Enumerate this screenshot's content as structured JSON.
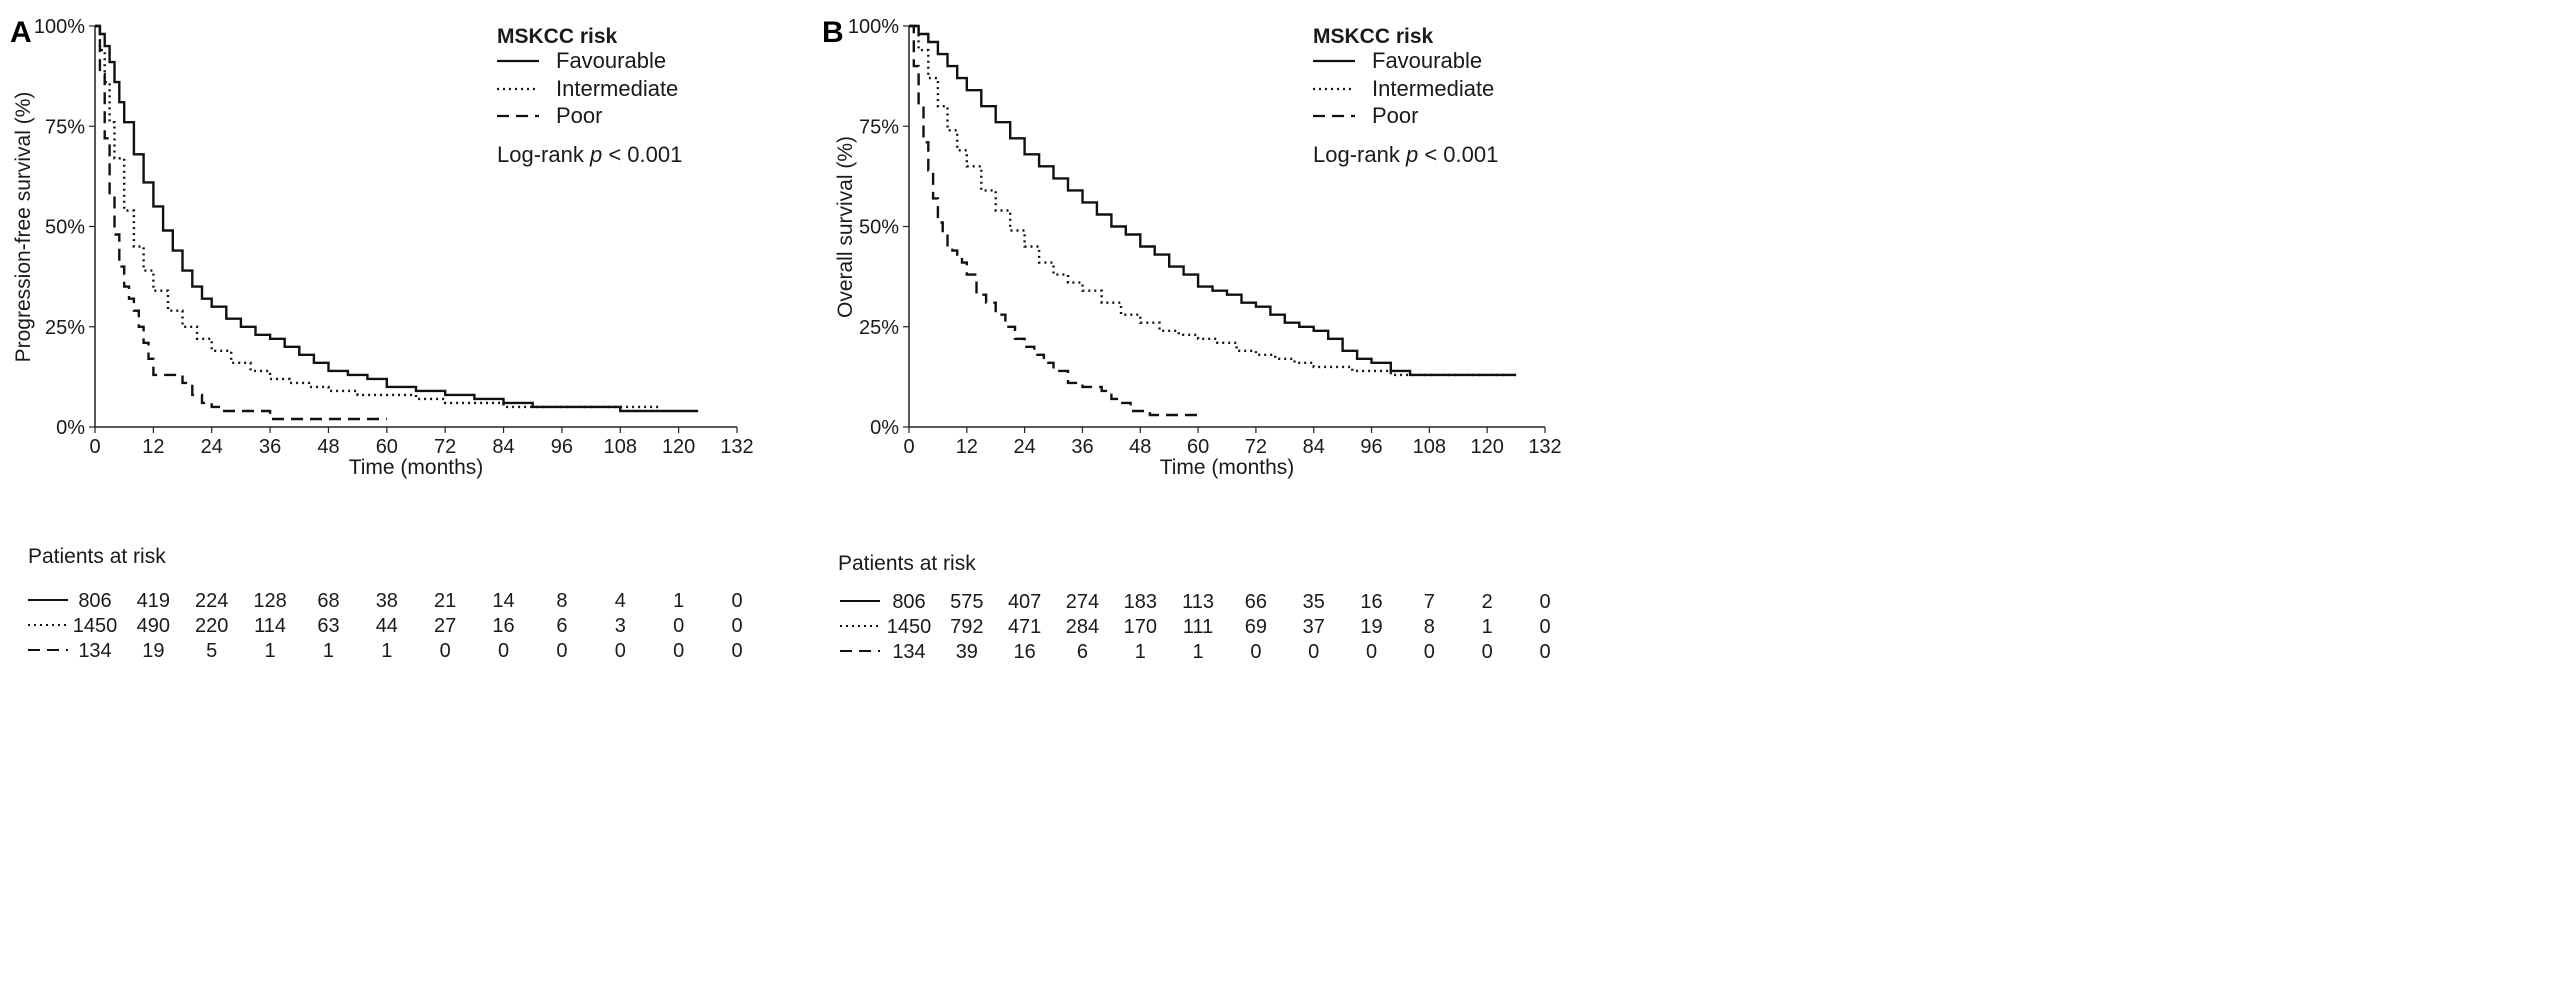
{
  "chart_data": [
    {
      "panel": "A",
      "type": "line",
      "title": "",
      "xlabel": "Time (months)",
      "ylabel": "Progression-free survival (%)",
      "xlim": [
        0,
        132
      ],
      "ylim": [
        0,
        100
      ],
      "xticks": [
        0,
        12,
        24,
        36,
        48,
        60,
        72,
        84,
        96,
        108,
        120,
        132
      ],
      "yticks": [
        "0%",
        "25%",
        "50%",
        "75%",
        "100%"
      ],
      "legend_title": "MSKCC risk",
      "annotation": "Log-rank p < 0.001",
      "series": [
        {
          "name": "Favourable",
          "style": "solid",
          "x": [
            0,
            1,
            2,
            3,
            4,
            5,
            6,
            8,
            10,
            12,
            14,
            16,
            18,
            20,
            22,
            24,
            27,
            30,
            33,
            36,
            39,
            42,
            45,
            48,
            52,
            56,
            60,
            66,
            72,
            78,
            84,
            90,
            96,
            102,
            106,
            108,
            114,
            120,
            124
          ],
          "y": [
            100,
            98,
            95,
            91,
            86,
            81,
            76,
            68,
            61,
            55,
            49,
            44,
            39,
            35,
            32,
            30,
            27,
            25,
            23,
            22,
            20,
            18,
            16,
            14,
            13,
            12,
            10,
            9,
            8,
            7,
            6,
            5,
            5,
            5,
            5,
            4,
            4,
            4,
            4
          ]
        },
        {
          "name": "Intermediate",
          "style": "dotted",
          "x": [
            0,
            1,
            2,
            3,
            4,
            6,
            8,
            10,
            12,
            15,
            18,
            21,
            24,
            28,
            32,
            36,
            40,
            44,
            48,
            54,
            60,
            66,
            72,
            78,
            84,
            90,
            96,
            102,
            108,
            116
          ],
          "y": [
            100,
            94,
            86,
            76,
            67,
            54,
            45,
            39,
            34,
            29,
            25,
            22,
            19,
            16,
            14,
            12,
            11,
            10,
            9,
            8,
            8,
            7,
            6,
            6,
            5,
            5,
            5,
            5,
            5,
            5
          ]
        },
        {
          "name": "Poor",
          "style": "dashed",
          "x": [
            0,
            1,
            2,
            3,
            4,
            5,
            6,
            7,
            8,
            9,
            10,
            11,
            12,
            15,
            18,
            20,
            22,
            24,
            26,
            30,
            36,
            48,
            60
          ],
          "y": [
            100,
            88,
            72,
            58,
            48,
            40,
            35,
            32,
            29,
            25,
            21,
            17,
            13,
            13,
            11,
            8,
            6,
            5,
            4,
            4,
            2,
            2,
            2
          ]
        }
      ],
      "risk_table": {
        "title": "Patients at risk",
        "rows": [
          {
            "style": "solid",
            "values": [
              "806",
              "419",
              "224",
              "128",
              "68",
              "38",
              "21",
              "14",
              "8",
              "4",
              "1",
              "0"
            ]
          },
          {
            "style": "dotted",
            "values": [
              "1450",
              "490",
              "220",
              "114",
              "63",
              "44",
              "27",
              "16",
              "6",
              "3",
              "0",
              "0"
            ]
          },
          {
            "style": "dashed",
            "values": [
              "134",
              "19",
              "5",
              "1",
              "1",
              "1",
              "0",
              "0",
              "0",
              "0",
              "0",
              "0"
            ]
          }
        ]
      }
    },
    {
      "panel": "B",
      "type": "line",
      "title": "",
      "xlabel": "Time (months)",
      "ylabel": "Overall survival (%)",
      "xlim": [
        0,
        132
      ],
      "ylim": [
        0,
        100
      ],
      "xticks": [
        0,
        12,
        24,
        36,
        48,
        60,
        72,
        84,
        96,
        108,
        120,
        132
      ],
      "yticks": [
        "0%",
        "25%",
        "50%",
        "75%",
        "100%"
      ],
      "legend_title": "MSKCC risk",
      "annotation": "Log-rank p < 0.001",
      "series": [
        {
          "name": "Favourable",
          "style": "solid",
          "x": [
            0,
            2,
            4,
            6,
            8,
            10,
            12,
            15,
            18,
            21,
            24,
            27,
            30,
            33,
            36,
            39,
            42,
            45,
            48,
            51,
            54,
            57,
            60,
            63,
            66,
            69,
            72,
            75,
            78,
            81,
            84,
            87,
            90,
            93,
            96,
            100,
            104,
            108,
            114,
            120,
            126
          ],
          "y": [
            100,
            98,
            96,
            93,
            90,
            87,
            84,
            80,
            76,
            72,
            68,
            65,
            62,
            59,
            56,
            53,
            50,
            48,
            45,
            43,
            40,
            38,
            35,
            34,
            33,
            31,
            30,
            28,
            26,
            25,
            24,
            22,
            19,
            17,
            16,
            14,
            13,
            13,
            13,
            13,
            13
          ]
        },
        {
          "name": "Intermediate",
          "style": "dotted",
          "x": [
            0,
            2,
            4,
            6,
            8,
            10,
            12,
            15,
            18,
            21,
            24,
            27,
            30,
            33,
            36,
            40,
            44,
            48,
            52,
            56,
            60,
            64,
            68,
            72,
            76,
            80,
            84,
            88,
            92,
            96,
            100,
            104,
            108,
            114,
            120,
            126
          ],
          "y": [
            100,
            94,
            87,
            80,
            74,
            69,
            65,
            59,
            54,
            49,
            45,
            41,
            38,
            36,
            34,
            31,
            28,
            26,
            24,
            23,
            22,
            21,
            19,
            18,
            17,
            16,
            15,
            15,
            14,
            14,
            13,
            13,
            13,
            13,
            13,
            13
          ]
        },
        {
          "name": "Poor",
          "style": "dashed",
          "x": [
            0,
            1,
            2,
            3,
            4,
            5,
            6,
            7,
            8,
            9,
            10,
            11,
            12,
            14,
            16,
            18,
            20,
            22,
            24,
            26,
            28,
            30,
            33,
            36,
            40,
            42,
            44,
            46,
            50,
            55,
            60
          ],
          "y": [
            100,
            90,
            80,
            71,
            64,
            57,
            51,
            48,
            45,
            44,
            43,
            41,
            38,
            33,
            31,
            28,
            25,
            22,
            20,
            18,
            16,
            14,
            11,
            10,
            9,
            7,
            6,
            4,
            3,
            3,
            3
          ]
        }
      ],
      "risk_table": {
        "title": "Patients at risk",
        "rows": [
          {
            "style": "solid",
            "values": [
              "806",
              "575",
              "407",
              "274",
              "183",
              "113",
              "66",
              "35",
              "16",
              "7",
              "2",
              "0"
            ]
          },
          {
            "style": "dotted",
            "values": [
              "1450",
              "792",
              "471",
              "284",
              "170",
              "111",
              "69",
              "37",
              "19",
              "8",
              "1",
              "0"
            ]
          },
          {
            "style": "dashed",
            "values": [
              "134",
              "39",
              "16",
              "6",
              "1",
              "1",
              "0",
              "0",
              "0",
              "0",
              "0",
              "0"
            ]
          }
        ]
      }
    }
  ]
}
